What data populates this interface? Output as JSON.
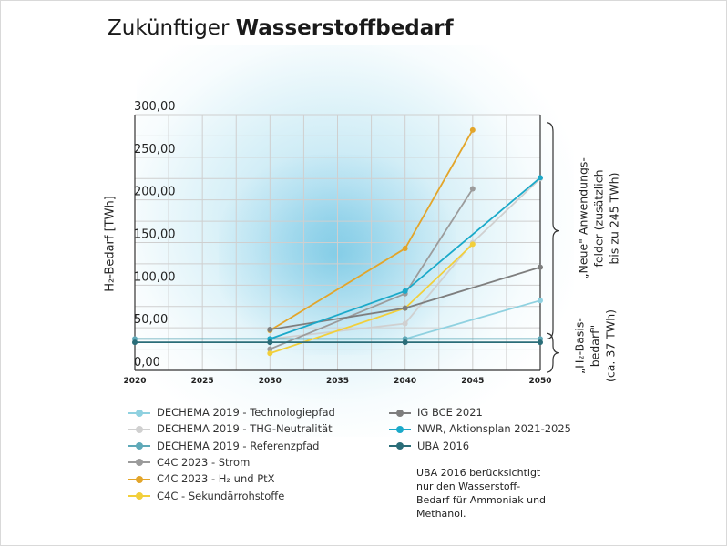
{
  "title": {
    "regular": "Zukünftiger ",
    "bold": "Wasserstoffbedarf"
  },
  "chart_data": {
    "type": "line",
    "title": "Zukünftiger Wasserstoffbedarf",
    "ylabel": "H₂-Bedarf [TWh]",
    "xlabel": "",
    "x_ticks": [
      "2020",
      "2025",
      "2030",
      "2035",
      "2040",
      "2045",
      "2050"
    ],
    "y_ticks": [
      "0,00",
      "50,00",
      "100,00",
      "150,00",
      "200,00",
      "250,00",
      "300,00"
    ],
    "xlim": [
      2020,
      2050
    ],
    "ylim": [
      0,
      300
    ],
    "grid": true,
    "series": [
      {
        "name": "DECHEMA 2019 - Technologiepfad",
        "color": "#8fd1e0",
        "points": [
          [
            2030,
            37
          ],
          [
            2040,
            37
          ],
          [
            2050,
            82
          ]
        ]
      },
      {
        "name": "DECHEMA 2019 - THG-Neutralität",
        "color": "#d0d0d0",
        "points": [
          [
            2030,
            37
          ],
          [
            2040,
            55
          ],
          [
            2045,
            150
          ],
          [
            2050,
            225
          ]
        ]
      },
      {
        "name": "DECHEMA 2019 - Referenzpfad",
        "color": "#5fa9b8",
        "points": [
          [
            2020,
            37
          ],
          [
            2030,
            37
          ],
          [
            2040,
            37
          ],
          [
            2050,
            37
          ]
        ]
      },
      {
        "name": "C4C 2023 - Strom",
        "color": "#9b9b9b",
        "points": [
          [
            2030,
            25
          ],
          [
            2040,
            90
          ],
          [
            2045,
            213
          ]
        ]
      },
      {
        "name": "C4C 2023 - H₂ und PtX",
        "color": "#e3a52a",
        "points": [
          [
            2030,
            47
          ],
          [
            2040,
            143
          ],
          [
            2045,
            282
          ]
        ]
      },
      {
        "name": "C4C - Sekundärrohstoffe",
        "color": "#f2cf3a",
        "points": [
          [
            2030,
            20
          ],
          [
            2040,
            73
          ],
          [
            2045,
            148
          ]
        ]
      },
      {
        "name": "IG BCE 2021",
        "color": "#7e7e7e",
        "points": [
          [
            2030,
            48
          ],
          [
            2040,
            73
          ],
          [
            2050,
            121
          ]
        ]
      },
      {
        "name": "NWR, Aktionsplan 2021-2025",
        "color": "#1ba9c9",
        "points": [
          [
            2030,
            37
          ],
          [
            2040,
            93
          ],
          [
            2050,
            226
          ]
        ]
      },
      {
        "name": "UBA 2016",
        "color": "#2a6d78",
        "points": [
          [
            2020,
            33
          ],
          [
            2030,
            33
          ],
          [
            2040,
            33
          ],
          [
            2050,
            33
          ]
        ]
      }
    ],
    "annotations": [
      {
        "text": "„Neue\" Anwendungs-\nfelder (zusätzlich\nbis zu 245 TWh)",
        "range": [
          37,
          282
        ]
      },
      {
        "text": "„H₂-Basis-\nbedarf\"\n(ca. 37 TWh)",
        "range": [
          0,
          37
        ]
      }
    ]
  },
  "legend_left": [
    "DECHEMA 2019 - Technologiepfad",
    "DECHEMA 2019 - THG-Neutralität",
    "DECHEMA 2019 - Referenzpfad",
    "C4C 2023 - Strom",
    "C4C 2023 - H₂ und PtX",
    "C4C - Sekundärrohstoffe"
  ],
  "legend_right": [
    "IG BCE 2021",
    "NWR, Aktionsplan 2021-2025",
    "UBA 2016"
  ],
  "note": "UBA 2016 berücksichtigt nur den Wasserstoff-Bedarf für Ammoniak und Methanol.",
  "note_lines": [
    "UBA 2016 berücksichtigt",
    "nur den Wasserstoff-",
    "Bedarf für Ammoniak und",
    "Methanol."
  ],
  "bracket_upper_lines": [
    "„Neue\" Anwendungs-",
    "felder (zusätzlich",
    "bis zu 245 TWh)"
  ],
  "bracket_lower_lines": [
    "„H₂-Basis-",
    "bedarf\"",
    "(ca. 37 TWh)"
  ]
}
